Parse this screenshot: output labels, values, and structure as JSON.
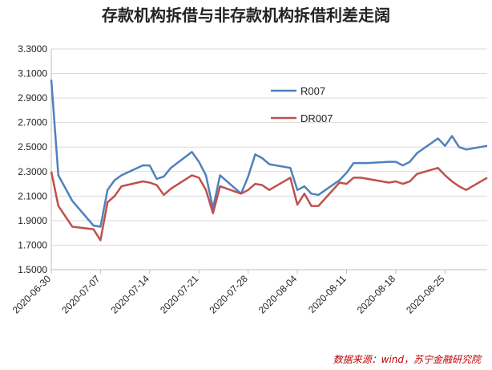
{
  "chart_data": {
    "type": "line",
    "title": "存款机构拆借与非存款机构拆借利差走阔",
    "source": "数据来源：wind，苏宁金融研究院",
    "ylim": [
      1.5,
      3.3
    ],
    "yticks": [
      "1.5000",
      "1.7000",
      "1.9000",
      "2.1000",
      "2.3000",
      "2.5000",
      "2.7000",
      "2.9000",
      "3.1000",
      "3.3000"
    ],
    "xlim": [
      "2020-06-30",
      "2020-08-31"
    ],
    "xticks": [
      "2020-06-30",
      "2020-07-07",
      "2020-07-14",
      "2020-07-21",
      "2020-07-28",
      "2020-08-04",
      "2020-08-11",
      "2020-08-18",
      "2020-08-25"
    ],
    "grid": "horizontal",
    "legend_position": "top-right",
    "x": [
      "2020-06-30",
      "2020-07-01",
      "2020-07-03",
      "2020-07-06",
      "2020-07-07",
      "2020-07-08",
      "2020-07-09",
      "2020-07-10",
      "2020-07-13",
      "2020-07-14",
      "2020-07-15",
      "2020-07-16",
      "2020-07-17",
      "2020-07-20",
      "2020-07-21",
      "2020-07-22",
      "2020-07-23",
      "2020-07-24",
      "2020-07-27",
      "2020-07-28",
      "2020-07-29",
      "2020-07-30",
      "2020-07-31",
      "2020-08-03",
      "2020-08-04",
      "2020-08-05",
      "2020-08-06",
      "2020-08-07",
      "2020-08-10",
      "2020-08-11",
      "2020-08-12",
      "2020-08-13",
      "2020-08-14",
      "2020-08-17",
      "2020-08-18",
      "2020-08-19",
      "2020-08-20",
      "2020-08-21",
      "2020-08-24",
      "2020-08-25",
      "2020-08-26",
      "2020-08-27",
      "2020-08-28",
      "2020-08-31"
    ],
    "series": [
      {
        "name": "R007",
        "color": "#4f81bd",
        "values": [
          3.05,
          2.27,
          2.06,
          1.86,
          1.85,
          2.15,
          2.23,
          2.27,
          2.35,
          2.35,
          2.24,
          2.26,
          2.33,
          2.46,
          2.38,
          2.27,
          2.0,
          2.27,
          2.12,
          2.26,
          2.44,
          2.41,
          2.36,
          2.33,
          2.15,
          2.18,
          2.12,
          2.11,
          2.23,
          2.29,
          2.37,
          2.37,
          2.37,
          2.38,
          2.38,
          2.35,
          2.38,
          2.45,
          2.57,
          2.51,
          2.59,
          2.5,
          2.48,
          2.51
        ]
      },
      {
        "name": "DR007",
        "color": "#c0504d",
        "values": [
          2.3,
          2.02,
          1.85,
          1.83,
          1.74,
          2.05,
          2.1,
          2.18,
          2.22,
          2.21,
          2.19,
          2.11,
          2.16,
          2.27,
          2.25,
          2.15,
          1.96,
          2.18,
          2.12,
          2.15,
          2.2,
          2.19,
          2.15,
          2.25,
          2.03,
          2.12,
          2.02,
          2.02,
          2.21,
          2.2,
          2.25,
          2.25,
          2.24,
          2.21,
          2.22,
          2.2,
          2.22,
          2.28,
          2.33,
          2.27,
          2.22,
          2.18,
          2.15,
          2.25
        ]
      }
    ]
  }
}
